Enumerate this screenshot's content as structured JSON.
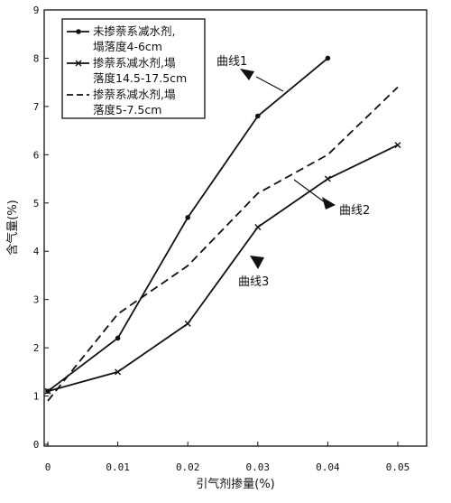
{
  "chart_data": {
    "type": "line",
    "xlabel": "引气剂掺量(%)",
    "ylabel": "含气量(%)",
    "xlim": [
      0,
      0.05
    ],
    "ylim": [
      0,
      9
    ],
    "x_ticks": [
      0,
      0.01,
      0.02,
      0.03,
      0.04,
      0.05
    ],
    "x_tick_labels": [
      "0",
      "0.01",
      "0.02",
      "0.03",
      "0.04",
      "0.05"
    ],
    "y_ticks": [
      0,
      1,
      2,
      3,
      4,
      5,
      6,
      7,
      8,
      9
    ],
    "y_tick_labels": [
      "0",
      "1",
      "2",
      "3",
      "4",
      "5",
      "6",
      "7",
      "8",
      "9"
    ],
    "grid": false,
    "legend_position": "top-left",
    "series": [
      {
        "name": "未掺萘系减水剂,\n塌落度4-6cm",
        "marker": "dot",
        "dash": "solid",
        "x": [
          0,
          0.01,
          0.02,
          0.03,
          0.04
        ],
        "values": [
          1.1,
          2.2,
          4.7,
          6.8,
          8.0
        ]
      },
      {
        "name": "掺萘系减水剂,塌\n落度14.5-17.5cm",
        "marker": "cross",
        "dash": "solid",
        "x": [
          0,
          0.01,
          0.02,
          0.03,
          0.04,
          0.05
        ],
        "values": [
          1.1,
          1.5,
          2.5,
          4.5,
          5.5,
          6.2
        ]
      },
      {
        "name": "掺萘系减水剂,塌\n落度5-7.5cm",
        "marker": "none",
        "dash": "dashed",
        "x": [
          0,
          0.01,
          0.02,
          0.03,
          0.04,
          0.05
        ],
        "values": [
          0.9,
          2.7,
          3.7,
          5.2,
          6.0,
          7.4
        ]
      }
    ],
    "annotations": [
      {
        "text": "曲线1",
        "target_series": 0
      },
      {
        "text": "曲线2",
        "target_series": 2
      },
      {
        "text": "曲线3",
        "target_series": 1
      }
    ]
  }
}
